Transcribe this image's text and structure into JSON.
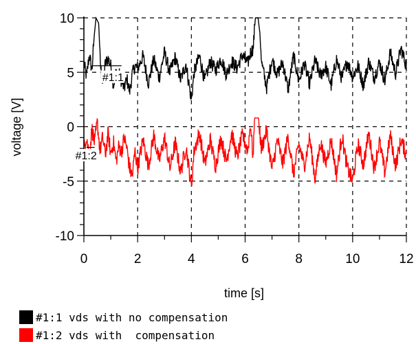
{
  "chart_data": {
    "type": "line",
    "title": "",
    "xlabel": "time [s]",
    "ylabel": "voltage [V]",
    "xlim": [
      0,
      12
    ],
    "ylim": [
      -10,
      10
    ],
    "x_ticks": [
      "0",
      "2",
      "4",
      "6",
      "8",
      "10",
      "12"
    ],
    "y_ticks": [
      "10",
      "5",
      "0",
      "-5",
      "-10"
    ],
    "grid": "dashed",
    "legend_position": "bottom-left",
    "series": [
      {
        "name": "#1:1 vds with no compensation",
        "tag": "#1:1",
        "color": "#000000",
        "baseline": 5.6,
        "noise_amplitude": 1.3,
        "points": [
          [
            0,
            5.8
          ],
          [
            0.1,
            4.6
          ],
          [
            0.2,
            6.6
          ],
          [
            0.3,
            5.2
          ],
          [
            0.38,
            8.2
          ],
          [
            0.45,
            10.0
          ],
          [
            0.55,
            9.5
          ],
          [
            0.62,
            5.5
          ],
          [
            0.7,
            4.0
          ],
          [
            0.8,
            5.8
          ],
          [
            0.9,
            6.3
          ],
          [
            1.0,
            5.6
          ],
          [
            1.1,
            3.8
          ],
          [
            1.2,
            5.0
          ],
          [
            1.3,
            4.9
          ],
          [
            1.4,
            4.2
          ],
          [
            1.5,
            3.5
          ],
          [
            1.6,
            4.4
          ],
          [
            1.7,
            3.2
          ],
          [
            1.8,
            4.8
          ],
          [
            1.9,
            5.6
          ],
          [
            2.0,
            5.3
          ],
          [
            2.2,
            6.5
          ],
          [
            2.4,
            4.0
          ],
          [
            2.6,
            6.2
          ],
          [
            2.8,
            4.5
          ],
          [
            3.0,
            6.8
          ],
          [
            3.2,
            5.0
          ],
          [
            3.4,
            6.4
          ],
          [
            3.6,
            4.3
          ],
          [
            3.8,
            5.8
          ],
          [
            4.0,
            2.4
          ],
          [
            4.1,
            5.0
          ],
          [
            4.3,
            6.5
          ],
          [
            4.5,
            4.2
          ],
          [
            4.7,
            6.0
          ],
          [
            4.9,
            5.2
          ],
          [
            5.1,
            6.3
          ],
          [
            5.3,
            4.8
          ],
          [
            5.5,
            6.0
          ],
          [
            5.7,
            5.4
          ],
          [
            5.9,
            6.6
          ],
          [
            6.1,
            5.8
          ],
          [
            6.2,
            6.8
          ],
          [
            6.3,
            7.2
          ],
          [
            6.38,
            10.0
          ],
          [
            6.48,
            10.0
          ],
          [
            6.55,
            8.6
          ],
          [
            6.62,
            5.8
          ],
          [
            6.8,
            3.6
          ],
          [
            7.0,
            6.2
          ],
          [
            7.2,
            4.8
          ],
          [
            7.4,
            5.9
          ],
          [
            7.6,
            3.4
          ],
          [
            7.8,
            6.5
          ],
          [
            8.0,
            4.2
          ],
          [
            8.2,
            5.8
          ],
          [
            8.4,
            3.9
          ],
          [
            8.6,
            6.1
          ],
          [
            8.8,
            4.7
          ],
          [
            9.0,
            5.5
          ],
          [
            9.2,
            3.8
          ],
          [
            9.4,
            6.2
          ],
          [
            9.6,
            4.4
          ],
          [
            9.8,
            6.0
          ],
          [
            10.0,
            4.6
          ],
          [
            10.2,
            5.6
          ],
          [
            10.4,
            3.8
          ],
          [
            10.6,
            6.0
          ],
          [
            10.8,
            4.5
          ],
          [
            11.0,
            5.9
          ],
          [
            11.2,
            4.2
          ],
          [
            11.4,
            6.8
          ],
          [
            11.6,
            4.9
          ],
          [
            11.8,
            7.2
          ],
          [
            12.0,
            5.6
          ]
        ]
      },
      {
        "name": "#1:2 vds with  compensation",
        "tag": "#1:2",
        "color": "#ff0000",
        "baseline": -2.4,
        "noise_amplitude": 1.5,
        "points": [
          [
            0,
            -2.0
          ],
          [
            0.1,
            -0.8
          ],
          [
            0.2,
            -2.8
          ],
          [
            0.3,
            -0.2
          ],
          [
            0.4,
            -1.5
          ],
          [
            0.5,
            0.4
          ],
          [
            0.6,
            -2.2
          ],
          [
            0.7,
            -1.0
          ],
          [
            0.8,
            -2.6
          ],
          [
            0.9,
            -0.6
          ],
          [
            1.0,
            -2.5
          ],
          [
            1.1,
            -1.4
          ],
          [
            1.2,
            -3.2
          ],
          [
            1.3,
            -1.8
          ],
          [
            1.4,
            -2.3
          ],
          [
            1.5,
            -1.0
          ],
          [
            1.6,
            -2.0
          ],
          [
            1.7,
            -3.8
          ],
          [
            1.8,
            -4.6
          ],
          [
            1.9,
            -2.2
          ],
          [
            2.0,
            -3.8
          ],
          [
            2.2,
            -1.2
          ],
          [
            2.4,
            -3.6
          ],
          [
            2.6,
            -0.8
          ],
          [
            2.8,
            -3.2
          ],
          [
            3.0,
            -1.0
          ],
          [
            3.2,
            -3.8
          ],
          [
            3.4,
            -1.5
          ],
          [
            3.6,
            -4.2
          ],
          [
            3.8,
            -1.8
          ],
          [
            4.0,
            -5.6
          ],
          [
            4.1,
            -2.2
          ],
          [
            4.3,
            -0.6
          ],
          [
            4.5,
            -3.5
          ],
          [
            4.7,
            -1.2
          ],
          [
            4.9,
            -3.6
          ],
          [
            5.1,
            -1.0
          ],
          [
            5.3,
            -3.2
          ],
          [
            5.5,
            -0.6
          ],
          [
            5.7,
            -2.8
          ],
          [
            5.9,
            -0.8
          ],
          [
            6.1,
            -2.2
          ],
          [
            6.2,
            0.3
          ],
          [
            6.3,
            -3.0
          ],
          [
            6.35,
            0.8
          ],
          [
            6.5,
            0.8
          ],
          [
            6.6,
            -2.0
          ],
          [
            6.8,
            -0.4
          ],
          [
            7.0,
            -4.0
          ],
          [
            7.2,
            -1.2
          ],
          [
            7.4,
            -3.4
          ],
          [
            7.6,
            -0.9
          ],
          [
            7.8,
            -4.4
          ],
          [
            8.0,
            -1.6
          ],
          [
            8.2,
            -3.6
          ],
          [
            8.4,
            -1.0
          ],
          [
            8.6,
            -4.8
          ],
          [
            8.8,
            -1.4
          ],
          [
            9.0,
            -3.4
          ],
          [
            9.2,
            -1.2
          ],
          [
            9.4,
            -4.4
          ],
          [
            9.6,
            -0.8
          ],
          [
            9.8,
            -3.8
          ],
          [
            10.0,
            -5.0
          ],
          [
            10.2,
            -1.6
          ],
          [
            10.4,
            -3.5
          ],
          [
            10.6,
            -0.6
          ],
          [
            10.8,
            -3.8
          ],
          [
            11.0,
            -1.4
          ],
          [
            11.2,
            -4.2
          ],
          [
            11.4,
            -0.8
          ],
          [
            11.6,
            -3.6
          ],
          [
            11.8,
            -1.2
          ],
          [
            12.0,
            -2.6
          ]
        ]
      }
    ],
    "annotations": [
      {
        "series": 0,
        "x": 0.3,
        "y": 5.6,
        "x2": 1.4,
        "y2": 4.4,
        "hline_to": 5.6
      },
      {
        "series": 1,
        "x": 0.1,
        "y": -1.9,
        "x2": 0.4,
        "y2": -2.8,
        "hline_to": -1.9
      }
    ]
  },
  "legend": {
    "items": [
      {
        "label": "#1:1 vds with no compensation",
        "color": "#000000"
      },
      {
        "label": "#1:2 vds with  compensation",
        "color": "#ff0000"
      }
    ]
  }
}
